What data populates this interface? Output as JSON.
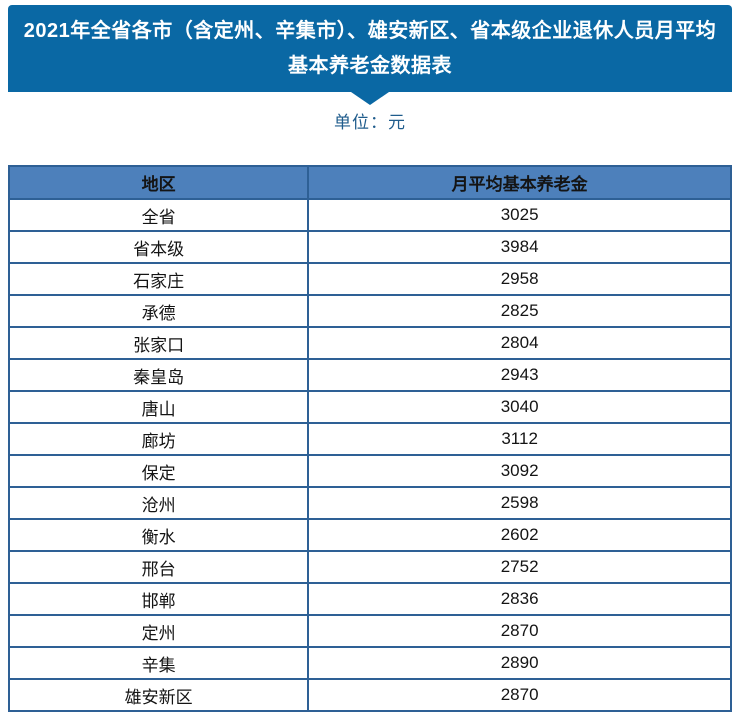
{
  "banner": {
    "title_line1": "2021年全省各市（含定州、辛集市）、雄安新区、省本级企业退休人员月平均",
    "title_line2": "基本养老金数据表"
  },
  "unit_label": "单位：元",
  "table": {
    "columns": [
      "地区",
      "月平均基本养老金"
    ],
    "rows": [
      {
        "region": "全省",
        "value": "3025"
      },
      {
        "region": "省本级",
        "value": "3984"
      },
      {
        "region": "石家庄",
        "value": "2958"
      },
      {
        "region": "承德",
        "value": "2825"
      },
      {
        "region": "张家口",
        "value": "2804"
      },
      {
        "region": "秦皇岛",
        "value": "2943"
      },
      {
        "region": "唐山",
        "value": "3040"
      },
      {
        "region": "廊坊",
        "value": "3112"
      },
      {
        "region": "保定",
        "value": "3092"
      },
      {
        "region": "沧州",
        "value": "2598"
      },
      {
        "region": "衡水",
        "value": "2602"
      },
      {
        "region": "邢台",
        "value": "2752"
      },
      {
        "region": "邯郸",
        "value": "2836"
      },
      {
        "region": "定州",
        "value": "2870"
      },
      {
        "region": "辛集",
        "value": "2890"
      },
      {
        "region": "雄安新区",
        "value": "2870"
      }
    ]
  },
  "colors": {
    "banner_blue": "#0a68a4",
    "table_header_fill": "#4d80bb",
    "table_border_blue": "#2e6095",
    "unit_text_blue": "#1f5c8c"
  }
}
